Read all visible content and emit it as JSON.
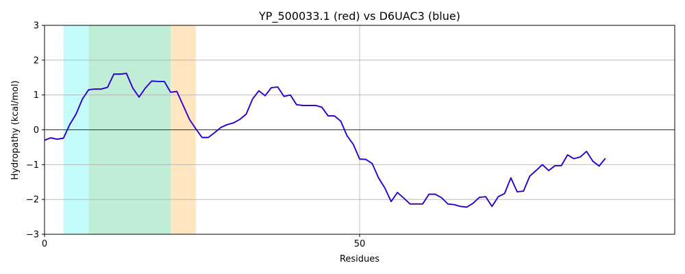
{
  "chart_data": {
    "type": "line",
    "title": "YP_500033.1 (red) vs D6UAC3 (blue)",
    "xlabel": "Residues",
    "ylabel": "Hydropathy (kcal/mol)",
    "xlim": [
      0,
      100
    ],
    "ylim": [
      -3,
      3
    ],
    "x_ticks": [
      0,
      50
    ],
    "y_ticks": [
      -3,
      -2,
      -1,
      0,
      1,
      2,
      3
    ],
    "grid": true,
    "zero_line": true,
    "regions": [
      {
        "x0": 3,
        "x1": 7,
        "color": "#c4fbfb"
      },
      {
        "x0": 7,
        "x1": 20,
        "color": "#c0edd6"
      },
      {
        "x0": 20,
        "x1": 24,
        "color": "#ffe6c0"
      }
    ],
    "series": [
      {
        "color": "#ff0000",
        "x": [
          0,
          1,
          2,
          3,
          4,
          5,
          6,
          7,
          8,
          9,
          10,
          11,
          12,
          13,
          14,
          15,
          16,
          17,
          18,
          19,
          20,
          21,
          22,
          23,
          24,
          25,
          26,
          27,
          28,
          29,
          30,
          31,
          32,
          33,
          34,
          35,
          36,
          37,
          38,
          39,
          40,
          41,
          42,
          43,
          44,
          45,
          46,
          47,
          48,
          49,
          50,
          51,
          52,
          53,
          54,
          55,
          56,
          57,
          58,
          59,
          60,
          61,
          62,
          63,
          64,
          65,
          66,
          67,
          68,
          69,
          70,
          71,
          72,
          73,
          74,
          75,
          76,
          77,
          78,
          79,
          80,
          81,
          82,
          83,
          84,
          85,
          86,
          87,
          88,
          89
        ],
        "values": [
          -0.3,
          -0.23,
          -0.27,
          -0.24,
          0.15,
          0.45,
          0.88,
          1.15,
          1.17,
          1.17,
          1.22,
          1.6,
          1.6,
          1.62,
          1.2,
          0.94,
          1.2,
          1.4,
          1.39,
          1.39,
          1.08,
          1.1,
          0.7,
          0.3,
          0.03,
          -0.22,
          -0.22,
          -0.08,
          0.07,
          0.15,
          0.2,
          0.3,
          0.45,
          0.88,
          1.12,
          0.98,
          1.21,
          1.23,
          0.96,
          1.0,
          0.72,
          0.7,
          0.7,
          0.7,
          0.65,
          0.4,
          0.4,
          0.25,
          -0.17,
          -0.42,
          -0.84,
          -0.85,
          -0.97,
          -1.38,
          -1.67,
          -2.06,
          -1.8,
          -1.96,
          -2.13,
          -2.13,
          -2.13,
          -1.85,
          -1.85,
          -1.95,
          -2.13,
          -2.15,
          -2.2,
          -2.22,
          -2.11,
          -1.94,
          -1.92,
          -2.2,
          -1.92,
          -1.83,
          -1.38,
          -1.78,
          -1.76,
          -1.33,
          -1.17,
          -1.0,
          -1.17,
          -1.03,
          -1.03,
          -0.72,
          -0.83,
          -0.78,
          -0.62,
          -0.9,
          -1.04,
          -0.82
        ]
      },
      {
        "color": "#0000ff",
        "x": [
          0,
          1,
          2,
          3,
          4,
          5,
          6,
          7,
          8,
          9,
          10,
          11,
          12,
          13,
          14,
          15,
          16,
          17,
          18,
          19,
          20,
          21,
          22,
          23,
          24,
          25,
          26,
          27,
          28,
          29,
          30,
          31,
          32,
          33,
          34,
          35,
          36,
          37,
          38,
          39,
          40,
          41,
          42,
          43,
          44,
          45,
          46,
          47,
          48,
          49,
          50,
          51,
          52,
          53,
          54,
          55,
          56,
          57,
          58,
          59,
          60,
          61,
          62,
          63,
          64,
          65,
          66,
          67,
          68,
          69,
          70,
          71,
          72,
          73,
          74,
          75,
          76,
          77,
          78,
          79,
          80,
          81,
          82,
          83,
          84,
          85,
          86,
          87,
          88,
          89
        ],
        "values": [
          -0.3,
          -0.23,
          -0.27,
          -0.24,
          0.15,
          0.45,
          0.88,
          1.15,
          1.17,
          1.17,
          1.22,
          1.6,
          1.6,
          1.62,
          1.2,
          0.94,
          1.2,
          1.4,
          1.39,
          1.39,
          1.08,
          1.1,
          0.7,
          0.3,
          0.03,
          -0.22,
          -0.22,
          -0.08,
          0.07,
          0.15,
          0.2,
          0.3,
          0.45,
          0.88,
          1.12,
          0.98,
          1.21,
          1.23,
          0.96,
          1.0,
          0.72,
          0.7,
          0.7,
          0.7,
          0.65,
          0.4,
          0.4,
          0.25,
          -0.17,
          -0.42,
          -0.84,
          -0.85,
          -0.97,
          -1.38,
          -1.67,
          -2.06,
          -1.8,
          -1.96,
          -2.13,
          -2.13,
          -2.13,
          -1.85,
          -1.85,
          -1.95,
          -2.13,
          -2.15,
          -2.2,
          -2.22,
          -2.11,
          -1.94,
          -1.92,
          -2.2,
          -1.92,
          -1.83,
          -1.38,
          -1.78,
          -1.76,
          -1.33,
          -1.17,
          -1.0,
          -1.17,
          -1.03,
          -1.03,
          -0.72,
          -0.83,
          -0.78,
          -0.62,
          -0.9,
          -1.04,
          -0.82
        ]
      }
    ]
  }
}
